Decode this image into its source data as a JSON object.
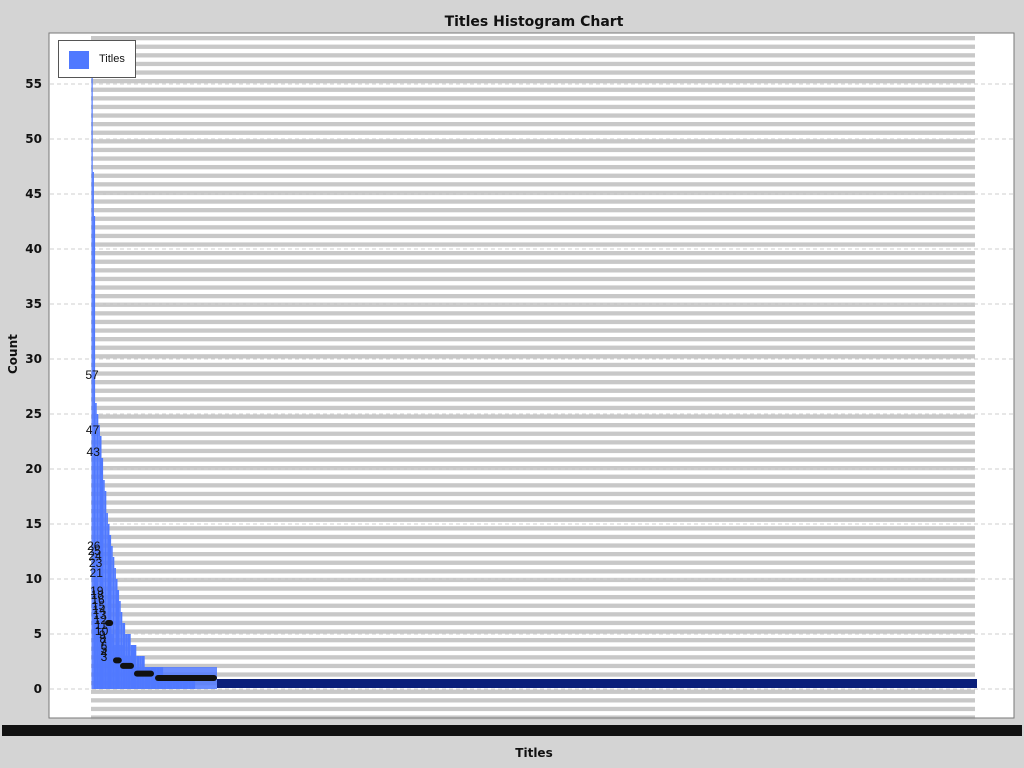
{
  "chart_data": {
    "type": "bar",
    "title": "Titles Histogram Chart",
    "xlabel": "Titles",
    "ylabel": "Count",
    "ylim": [
      -2,
      60
    ],
    "yticks": [
      0,
      5,
      10,
      15,
      20,
      25,
      30,
      35,
      40,
      45,
      50,
      55
    ],
    "grid": true,
    "legend": {
      "position": "top-left",
      "entries": [
        "Titles"
      ]
    },
    "colors": {
      "bar": "#5079ff",
      "bar_outline": "#0a1a8c",
      "tail": "#0a1f7a",
      "grid_band": "#c8c8c8",
      "plot_bg": "#ffffff"
    },
    "series": [
      {
        "name": "Titles",
        "values": [
          57,
          47,
          43,
          26,
          25,
          24,
          23,
          21,
          19,
          18,
          16,
          15,
          14,
          13,
          12,
          11,
          10,
          9,
          8,
          7,
          6,
          5,
          5,
          4,
          4,
          3,
          3,
          3,
          2,
          2,
          2,
          2,
          2,
          2,
          1,
          1,
          1,
          1,
          1,
          1,
          1,
          1,
          1,
          1
        ]
      }
    ],
    "labeled_values": [
      "57",
      "47",
      "43",
      "26",
      "25",
      "24",
      "23",
      "21",
      "19",
      "18",
      "16",
      "15",
      "14",
      "13",
      "12",
      "11",
      "10",
      "9",
      "8",
      "7",
      "6",
      "5",
      "4",
      "3"
    ],
    "tail_value": 1
  }
}
